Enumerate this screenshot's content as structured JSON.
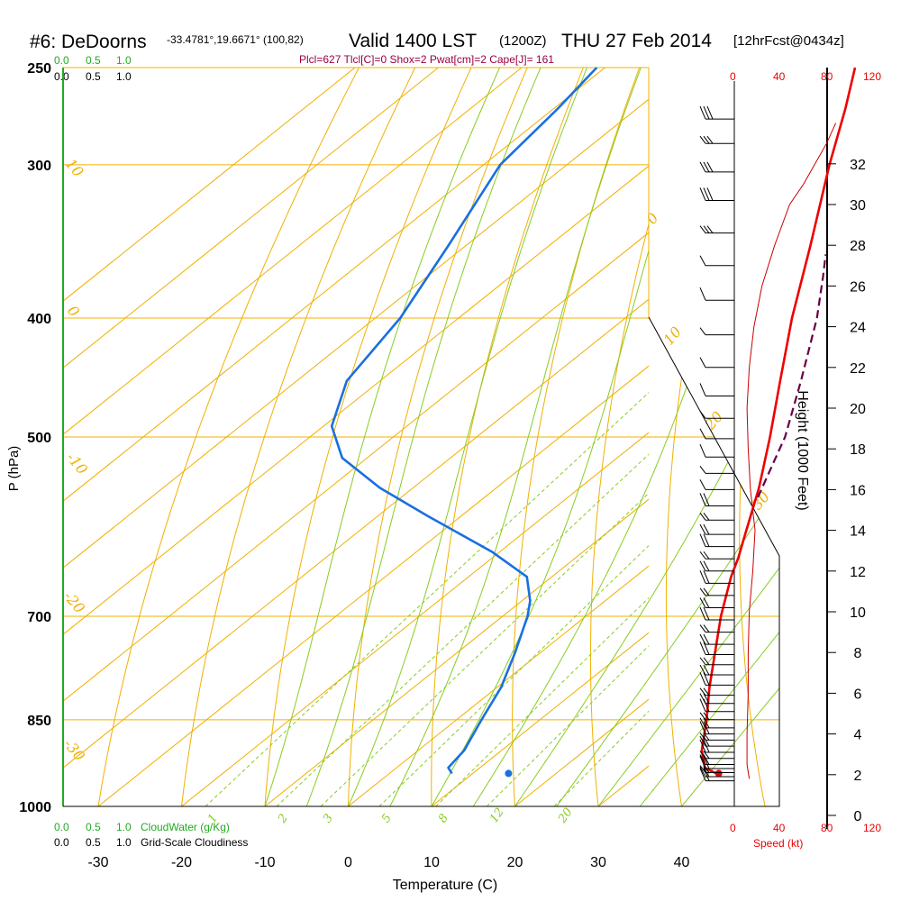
{
  "header": {
    "station": "#6: DeDoorns",
    "coords": "-33.4781°,19.6671° (100,82)",
    "valid": "Valid 1400 LST",
    "utc": "(1200Z)",
    "date": "THU 27 Feb 2014",
    "forecast": "[12hrFcst@0434z]",
    "indices": "Plcl=627 Tlcl[C]=0 Shox=2 Pwat[cm]=2 Cape[J]= 161"
  },
  "scales": {
    "cloudwater_top": [
      "0.0",
      "0.5",
      "1.0"
    ],
    "cloudiness_top": [
      "0.0",
      "0.5",
      "1.0"
    ],
    "cloudwater_bottom": [
      "0.0",
      "0.5",
      "1.0"
    ],
    "cloudwater_label": "CloudWater (g/Kg)",
    "cloudiness_bottom": [
      "0.0",
      "0.5",
      "1.0"
    ],
    "cloudiness_label": "Grid-Scale Cloudiness",
    "speed_top": [
      "0",
      "40",
      "80",
      "120"
    ],
    "speed_bottom": [
      "0",
      "40",
      "80",
      "120"
    ],
    "speed_label": "Speed (kt)"
  },
  "colors": {
    "isotherm": "#f0b000",
    "mixing_ratio": "#88cc22",
    "temperature": "#ee0000",
    "dewpoint": "#1a6fe0",
    "parcel": "#660044",
    "cloudwater": "#22aa22",
    "speed": "#cc0000"
  },
  "chart_data": {
    "type": "line",
    "title": "#6: DeDoorns Valid 1400 LST (1200Z) THU 27 Feb 2014",
    "xlabel": "Temperature (C)",
    "ylabel": "P (hPa)",
    "y2label": "Height (1000 Feet)",
    "x_ticks": [
      -30,
      -20,
      -10,
      0,
      10,
      20,
      30,
      40
    ],
    "pressure_levels": [
      250,
      300,
      400,
      500,
      700,
      850,
      1000
    ],
    "height_ticks": [
      0,
      2,
      4,
      6,
      8,
      10,
      12,
      14,
      16,
      18,
      20,
      22,
      24,
      26,
      28,
      30,
      32
    ],
    "isotherm_labels": [
      "-30",
      "-20",
      "-10",
      "0",
      "10",
      "20",
      "30",
      "10",
      "0",
      "-10",
      "-20",
      "-30"
    ],
    "mixing_ratio_labels": [
      "1",
      "2",
      "3",
      "5",
      "8",
      "12",
      "20"
    ],
    "series": [
      {
        "name": "Temperature",
        "points": [
          {
            "p": 940,
            "t": 39.2
          },
          {
            "p": 930,
            "t": 37.0
          },
          {
            "p": 900,
            "t": 34.0
          },
          {
            "p": 850,
            "t": 30.0
          },
          {
            "p": 800,
            "t": 25.5
          },
          {
            "p": 750,
            "t": 21.0
          },
          {
            "p": 700,
            "t": 16.2
          },
          {
            "p": 650,
            "t": 11.5
          },
          {
            "p": 627,
            "t": 9.5
          },
          {
            "p": 600,
            "t": 6.8
          },
          {
            "p": 550,
            "t": 1.5
          },
          {
            "p": 500,
            "t": -4.8
          },
          {
            "p": 450,
            "t": -12.0
          },
          {
            "p": 400,
            "t": -20.0
          },
          {
            "p": 350,
            "t": -28.5
          },
          {
            "p": 300,
            "t": -38.5
          },
          {
            "p": 270,
            "t": -45.0
          },
          {
            "p": 250,
            "t": -50.0
          }
        ]
      },
      {
        "name": "Dewpoint",
        "points": [
          {
            "p": 940,
            "t": 7.5
          },
          {
            "p": 930,
            "t": 6.2
          },
          {
            "p": 900,
            "t": 5.5
          },
          {
            "p": 850,
            "t": 3.0
          },
          {
            "p": 800,
            "t": 0.5
          },
          {
            "p": 750,
            "t": -3.0
          },
          {
            "p": 700,
            "t": -7.0
          },
          {
            "p": 680,
            "t": -9.0
          },
          {
            "p": 650,
            "t": -13.0
          },
          {
            "p": 620,
            "t": -21.0
          },
          {
            "p": 580,
            "t": -34.0
          },
          {
            "p": 550,
            "t": -44.0
          },
          {
            "p": 520,
            "t": -53.0
          },
          {
            "p": 490,
            "t": -59.0
          },
          {
            "p": 450,
            "t": -64.0
          },
          {
            "p": 400,
            "t": -67.0
          },
          {
            "p": 350,
            "t": -72.0
          },
          {
            "p": 300,
            "t": -78.0
          },
          {
            "p": 270,
            "t": -79.5
          },
          {
            "p": 250,
            "t": -81.0
          }
        ]
      },
      {
        "name": "Parcel",
        "points": [
          {
            "p": 560,
            "t": 2.8
          },
          {
            "p": 500,
            "t": -3.0
          },
          {
            "p": 450,
            "t": -9.5
          },
          {
            "p": 400,
            "t": -17.0
          },
          {
            "p": 370,
            "t": -22.5
          },
          {
            "p": 355,
            "t": -25.5
          }
        ]
      }
    ],
    "surface_points": [
      {
        "name": "Temperature",
        "p": 940,
        "t": 39.5
      },
      {
        "name": "Dewpoint",
        "p": 940,
        "t": 7.8
      }
    ],
    "wind_speed_profile": [
      {
        "h": 1.8,
        "kt": 13
      },
      {
        "h": 2.5,
        "kt": 11
      },
      {
        "h": 4,
        "kt": 11
      },
      {
        "h": 6,
        "kt": 12
      },
      {
        "h": 8,
        "kt": 12
      },
      {
        "h": 10,
        "kt": 13
      },
      {
        "h": 12,
        "kt": 16
      },
      {
        "h": 14,
        "kt": 18
      },
      {
        "h": 16,
        "kt": 14
      },
      {
        "h": 18,
        "kt": 12
      },
      {
        "h": 20,
        "kt": 11
      },
      {
        "h": 22,
        "kt": 13
      },
      {
        "h": 24,
        "kt": 17
      },
      {
        "h": 26,
        "kt": 24
      },
      {
        "h": 28,
        "kt": 35
      },
      {
        "h": 30,
        "kt": 48
      },
      {
        "h": 31,
        "kt": 60
      },
      {
        "h": 32,
        "kt": 70
      },
      {
        "h": 33,
        "kt": 80
      },
      {
        "h": 34,
        "kt": 88
      }
    ],
    "wind_barb_heights": [
      1.7,
      1.9,
      2.1,
      2.3,
      2.5,
      2.8,
      3.1,
      3.4,
      3.7,
      4.0,
      4.3,
      4.7,
      5.1,
      5.5,
      5.9,
      6.4,
      6.9,
      7.4,
      7.9,
      8.4,
      9.0,
      9.6,
      10.2,
      10.8,
      11.4,
      12.0,
      12.6,
      13.2,
      13.8,
      14.5,
      15.2,
      16.0,
      16.8,
      17.6,
      18.5,
      19.5,
      20.6,
      22.0,
      23.6,
      25.3,
      27.0,
      28.6,
      30.2,
      31.6,
      33.0,
      34.2
    ]
  }
}
